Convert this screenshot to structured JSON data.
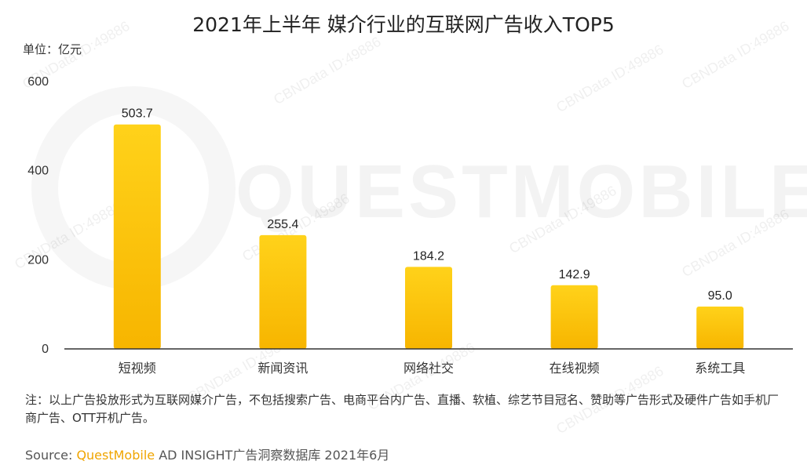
{
  "title": "2021年上半年 媒介行业的互联网广告收入TOP5",
  "unit_label": "单位：亿元",
  "watermark": {
    "logo_text": "QUESTMOBILE",
    "stamp_text": "CBNData ID:49886"
  },
  "note": "注：以上广告投放形式为互联网媒介广告，不包括搜索广告、电商平台内广告、直播、软植、综艺节目冠名、赞助等广告形式及硬件广告如手机厂商广告、OTT开机广告。",
  "source": {
    "prefix": "Source:",
    "brand": "QuestMobile",
    "rest": "AD INSIGHT广告洞察数据库 2021年6月"
  },
  "colors": {
    "bar_top": "#ffd21a",
    "bar_bottom": "#f7b500",
    "axis": "#333333",
    "brand": "#f0a500"
  },
  "chart_data": {
    "type": "bar",
    "categories": [
      "短视频",
      "新闻资讯",
      "网络社交",
      "在线视频",
      "系统工具"
    ],
    "values": [
      503.7,
      255.4,
      184.2,
      142.9,
      95.0
    ],
    "value_labels": [
      "503.7",
      "255.4",
      "184.2",
      "142.9",
      "95.0"
    ],
    "yticks": [
      0,
      200,
      400,
      600
    ],
    "ylim": [
      0,
      600
    ],
    "grid": false,
    "legend": "none"
  }
}
